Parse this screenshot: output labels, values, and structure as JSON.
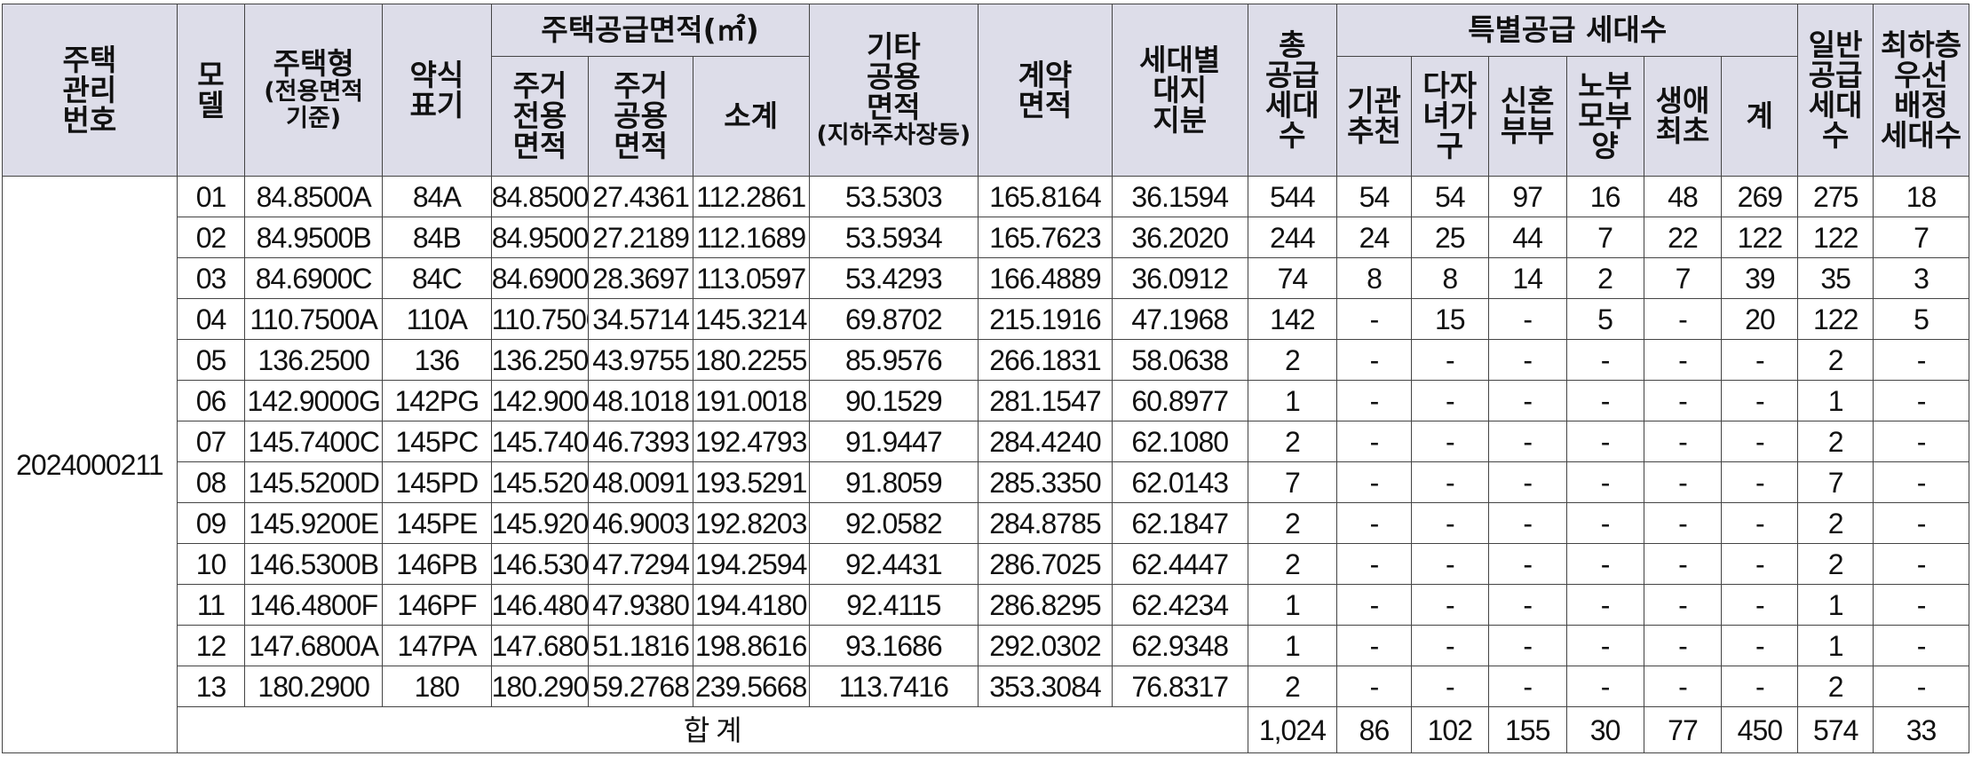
{
  "headers": {
    "mgmt_no": "주택\n관리\n번호",
    "model": "모\n델",
    "house_type": "주택형",
    "house_type_sub": "(전용면적\n기준)",
    "short": "약식\n표기",
    "supply_area": "주택공급면적(㎡)",
    "excl_area": "주거\n전용\n면적",
    "common_area": "주거\n공용\n면적",
    "subtotal": "소계",
    "other_common": "기타\n공용\n면적",
    "other_common_sub": "(지하주차장등)",
    "contract_area": "계약\n면적",
    "land_share": "세대별\n대지\n지분",
    "total_units": "총\n공급\n세대\n수",
    "special": "특별공급 세대수",
    "inst": "기관\n추천",
    "multi": "다자\n녀가\n구",
    "newlywed": "신혼\n부부",
    "elderly": "노부\n모부\n양",
    "firsttime": "생애\n최초",
    "special_sum": "계",
    "general": "일반\n공급\n세대\n수",
    "lowfloor": "최하층\n우선\n배정\n세대수"
  },
  "mgmt_code": "2024000211",
  "rows": [
    [
      "01",
      "84.8500A",
      "84A",
      "84.8500",
      "27.4361",
      "112.2861",
      "53.5303",
      "165.8164",
      "36.1594",
      "544",
      "54",
      "54",
      "97",
      "16",
      "48",
      "269",
      "275",
      "18"
    ],
    [
      "02",
      "84.9500B",
      "84B",
      "84.9500",
      "27.2189",
      "112.1689",
      "53.5934",
      "165.7623",
      "36.2020",
      "244",
      "24",
      "25",
      "44",
      "7",
      "22",
      "122",
      "122",
      "7"
    ],
    [
      "03",
      "84.6900C",
      "84C",
      "84.6900",
      "28.3697",
      "113.0597",
      "53.4293",
      "166.4889",
      "36.0912",
      "74",
      "8",
      "8",
      "14",
      "2",
      "7",
      "39",
      "35",
      "3"
    ],
    [
      "04",
      "110.7500A",
      "110A",
      "110.7500",
      "34.5714",
      "145.3214",
      "69.8702",
      "215.1916",
      "47.1968",
      "142",
      "-",
      "15",
      "-",
      "5",
      "-",
      "20",
      "122",
      "5"
    ],
    [
      "05",
      "136.2500",
      "136",
      "136.2500",
      "43.9755",
      "180.2255",
      "85.9576",
      "266.1831",
      "58.0638",
      "2",
      "-",
      "-",
      "-",
      "-",
      "-",
      "-",
      "2",
      "-"
    ],
    [
      "06",
      "142.9000G",
      "142PG",
      "142.9000",
      "48.1018",
      "191.0018",
      "90.1529",
      "281.1547",
      "60.8977",
      "1",
      "-",
      "-",
      "-",
      "-",
      "-",
      "-",
      "1",
      "-"
    ],
    [
      "07",
      "145.7400C",
      "145PC",
      "145.7400",
      "46.7393",
      "192.4793",
      "91.9447",
      "284.4240",
      "62.1080",
      "2",
      "-",
      "-",
      "-",
      "-",
      "-",
      "-",
      "2",
      "-"
    ],
    [
      "08",
      "145.5200D",
      "145PD",
      "145.5200",
      "48.0091",
      "193.5291",
      "91.8059",
      "285.3350",
      "62.0143",
      "7",
      "-",
      "-",
      "-",
      "-",
      "-",
      "-",
      "7",
      "-"
    ],
    [
      "09",
      "145.9200E",
      "145PE",
      "145.9200",
      "46.9003",
      "192.8203",
      "92.0582",
      "284.8785",
      "62.1847",
      "2",
      "-",
      "-",
      "-",
      "-",
      "-",
      "-",
      "2",
      "-"
    ],
    [
      "10",
      "146.5300B",
      "146PB",
      "146.5300",
      "47.7294",
      "194.2594",
      "92.4431",
      "286.7025",
      "62.4447",
      "2",
      "-",
      "-",
      "-",
      "-",
      "-",
      "-",
      "2",
      "-"
    ],
    [
      "11",
      "146.4800F",
      "146PF",
      "146.4800",
      "47.9380",
      "194.4180",
      "92.4115",
      "286.8295",
      "62.4234",
      "1",
      "-",
      "-",
      "-",
      "-",
      "-",
      "-",
      "1",
      "-"
    ],
    [
      "12",
      "147.6800A",
      "147PA",
      "147.6800",
      "51.1816",
      "198.8616",
      "93.1686",
      "292.0302",
      "62.9348",
      "1",
      "-",
      "-",
      "-",
      "-",
      "-",
      "-",
      "1",
      "-"
    ],
    [
      "13",
      "180.2900",
      "180",
      "180.2900",
      "59.2768",
      "239.5668",
      "113.7416",
      "353.3084",
      "76.8317",
      "2",
      "-",
      "-",
      "-",
      "-",
      "-",
      "-",
      "2",
      "-"
    ]
  ],
  "total": {
    "label": "합 계",
    "values": [
      "1,024",
      "86",
      "102",
      "155",
      "30",
      "77",
      "450",
      "574",
      "33"
    ]
  }
}
